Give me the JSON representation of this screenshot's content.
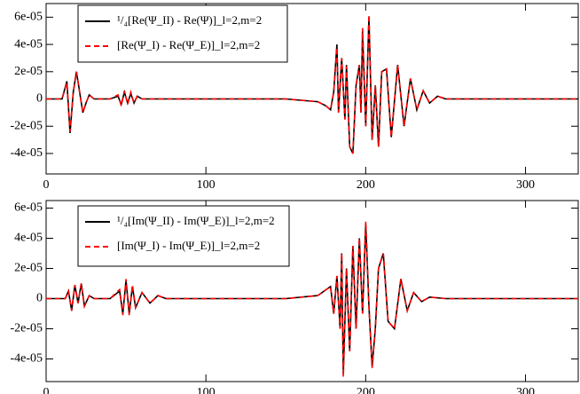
{
  "chart_data": [
    {
      "type": "line",
      "x": [
        0,
        10,
        13,
        15,
        17,
        19,
        21,
        23,
        25,
        27,
        30,
        40,
        45,
        47,
        49,
        51,
        53,
        55,
        57,
        60,
        70,
        100,
        150,
        170,
        175,
        178,
        180,
        182,
        183,
        185,
        187,
        188,
        190,
        192,
        194,
        196,
        197,
        198,
        200,
        202,
        204,
        206,
        208,
        210,
        213,
        216,
        220,
        224,
        228,
        232,
        236,
        240,
        245,
        250,
        260,
        280,
        333
      ],
      "series": [
        {
          "name": "¹/₄[Re(Ψ_II) - Re(Ψ)]_l=2,m=2",
          "color": "#000000",
          "linestyle": "solid",
          "values": [
            0,
            0,
            1.3e-05,
            -2.5e-05,
            5e-06,
            2e-05,
            5e-06,
            -1e-05,
            -3e-06,
            3e-06,
            0,
            0,
            2e-06,
            -4e-06,
            5e-06,
            -3e-06,
            4e-06,
            -3e-06,
            2e-06,
            0,
            0,
            0,
            0,
            -2e-06,
            -5e-06,
            -8e-06,
            5e-06,
            4e-05,
            -1e-05,
            3e-05,
            -1.5e-05,
            2.5e-05,
            -3.5e-05,
            -4e-05,
            1e-05,
            2.5e-05,
            -1e-05,
            5e-05,
            -2e-05,
            6e-05,
            -3e-05,
            1e-05,
            -3.5e-05,
            2e-05,
            2.2e-05,
            -2.8e-05,
            2.5e-05,
            -2e-05,
            1.5e-05,
            -8e-06,
            6e-06,
            -3e-06,
            2e-06,
            0,
            0,
            0,
            0
          ]
        },
        {
          "name": "[Re(Ψ_I) - Re(Ψ_E)]_l=2,m=2",
          "color": "#ff0000",
          "linestyle": "dashed",
          "values": [
            0,
            0,
            1.2e-05,
            -2.4e-05,
            5e-06,
            2e-05,
            5e-06,
            -1e-05,
            -3e-06,
            3e-06,
            0,
            0,
            3e-06,
            -5e-06,
            6e-06,
            -4e-06,
            5e-06,
            -3e-06,
            2e-06,
            0,
            0,
            0,
            0,
            -2e-06,
            -5e-06,
            -8e-06,
            5e-06,
            3.8e-05,
            -1e-05,
            3e-05,
            -1.5e-05,
            2.4e-05,
            -3.5e-05,
            -4e-05,
            1e-05,
            2.5e-05,
            -1e-05,
            5.2e-05,
            -2e-05,
            6.2e-05,
            -3e-05,
            1e-05,
            -3.5e-05,
            2e-05,
            2.2e-05,
            -2.8e-05,
            2.5e-05,
            -2e-05,
            1.5e-05,
            -8e-06,
            6e-06,
            -3e-06,
            2e-06,
            0,
            0,
            0,
            0
          ]
        }
      ],
      "xlim": [
        0,
        333
      ],
      "ylim": [
        -5.5e-05,
        7e-05
      ],
      "xticks": [
        0,
        100,
        200,
        300
      ],
      "yticks": [
        {
          "value": -4e-05,
          "label": "-4e-05"
        },
        {
          "value": -2e-05,
          "label": "-2e-05"
        },
        0,
        {
          "value": 2e-05,
          "label": "2e-05"
        },
        {
          "value": 4e-05,
          "label": "4e-05"
        },
        {
          "value": 6e-05,
          "label": "6e-05"
        }
      ]
    },
    {
      "type": "line",
      "x": [
        0,
        12,
        14,
        16,
        18,
        20,
        22,
        24,
        27,
        30,
        40,
        46,
        48,
        50,
        52,
        54,
        56,
        60,
        65,
        70,
        75,
        100,
        150,
        170,
        178,
        180,
        182,
        184,
        185,
        186,
        188,
        190,
        192,
        194,
        196,
        198,
        200,
        202,
        204,
        206,
        208,
        211,
        214,
        218,
        222,
        226,
        230,
        235,
        240,
        250,
        333
      ],
      "series": [
        {
          "name": "¹/₄[Im(Ψ_II) - Im(Ψ_E)]_l=2,m=2",
          "color": "#000000",
          "linestyle": "solid",
          "values": [
            0,
            0,
            5e-06,
            -8e-06,
            9e-06,
            -3e-06,
            1e-05,
            -5e-06,
            2e-06,
            0,
            0,
            5e-06,
            -1e-05,
            1.2e-05,
            -1e-05,
            8e-06,
            -6e-06,
            4e-06,
            -3e-06,
            2e-06,
            0,
            0,
            0,
            2e-06,
            8e-06,
            -1e-05,
            1.5e-05,
            -2e-05,
            3e-05,
            -5e-05,
            2e-05,
            -3.5e-05,
            3.5e-05,
            -2e-05,
            4e-05,
            -1e-05,
            5e-05,
            -5e-06,
            -4.5e-05,
            -2e-05,
            2e-05,
            3e-05,
            -1.5e-05,
            -2e-05,
            1.3e-05,
            -8e-06,
            4e-06,
            -2e-06,
            1e-06,
            0,
            0
          ]
        },
        {
          "name": "[Im(Ψ_I) - Im(Ψ_E)]_l=2,m=2",
          "color": "#ff0000",
          "linestyle": "dashed",
          "values": [
            0,
            0,
            5e-06,
            -8e-06,
            9e-06,
            -3e-06,
            1e-05,
            -5e-06,
            2e-06,
            0,
            0,
            6e-06,
            -1.1e-05,
            1.3e-05,
            -1.1e-05,
            9e-06,
            -6e-06,
            4e-06,
            -3e-06,
            2e-06,
            0,
            0,
            0,
            2e-06,
            8e-06,
            -1e-05,
            1.5e-05,
            -2e-05,
            3e-05,
            -5.2e-05,
            2e-05,
            -3.5e-05,
            3.5e-05,
            -2e-05,
            4e-05,
            -1e-05,
            5.1e-05,
            -5e-06,
            -4.6e-05,
            -2e-05,
            2e-05,
            3e-05,
            -1.5e-05,
            -2e-05,
            1.3e-05,
            -8e-06,
            4e-06,
            -2e-06,
            1e-06,
            0,
            0
          ]
        }
      ],
      "xlim": [
        0,
        333
      ],
      "ylim": [
        -5.5e-05,
        6.5e-05
      ],
      "xticks": [
        0,
        100,
        200,
        300
      ],
      "yticks": [
        {
          "value": -4e-05,
          "label": "-4e-05"
        },
        {
          "value": -2e-05,
          "label": "-2e-05"
        },
        0,
        {
          "value": 2e-05,
          "label": "2e-05"
        },
        {
          "value": 4e-05,
          "label": "4e-05"
        },
        {
          "value": 6e-05,
          "label": "6e-05"
        }
      ]
    }
  ]
}
